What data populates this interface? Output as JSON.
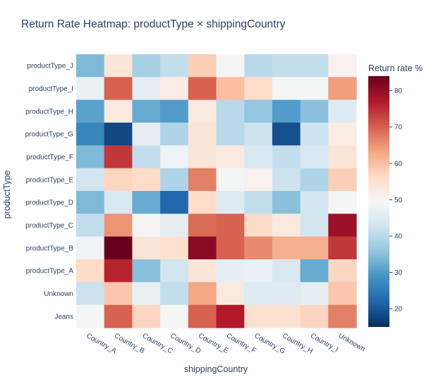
{
  "chart_data": {
    "type": "heatmap",
    "title": "Return Rate Heatmap: productType × shippingCountry",
    "xlabel": "shippingCountry",
    "ylabel": "productType",
    "colorbar_title": "Return rate %",
    "colorscale": "RdBu reversed",
    "zrange": [
      15,
      84
    ],
    "colorbar_ticks": [
      20,
      30,
      40,
      50,
      60,
      70,
      80
    ],
    "x": [
      "Country_A",
      "Country_B",
      "Country_C",
      "Country_D",
      "Country_E",
      "Country_F",
      "Country_G",
      "Country_H",
      "Country_I",
      "Unknown"
    ],
    "y": [
      "productType_J",
      "productType_I",
      "productType_H",
      "productType_G",
      "productType_F",
      "productType_E",
      "productType_D",
      "productType_C",
      "productType_B",
      "productType_A",
      "Unknown",
      "Jeans"
    ],
    "z": [
      [
        34,
        54,
        38,
        41,
        58,
        49,
        40,
        41,
        41,
        51
      ],
      [
        47,
        70,
        46,
        52,
        70,
        60,
        56,
        49,
        49,
        64
      ],
      [
        31,
        53,
        32,
        30,
        53,
        40,
        36,
        30,
        35,
        45
      ],
      [
        27,
        18,
        46,
        39,
        54,
        40,
        42,
        19,
        42,
        52
      ],
      [
        34,
        74,
        41,
        48,
        54,
        53,
        44,
        41,
        44,
        54
      ],
      [
        43,
        57,
        56,
        39,
        67,
        49,
        51,
        42,
        39,
        58
      ],
      [
        34,
        44,
        32,
        22,
        56,
        45,
        41,
        35,
        43,
        49
      ],
      [
        41,
        65,
        50,
        46,
        69,
        70,
        56,
        53,
        43,
        79
      ],
      [
        48,
        84,
        54,
        55,
        81,
        70,
        66,
        62,
        62,
        74
      ],
      [
        56,
        76,
        35,
        43,
        54,
        46,
        47,
        44,
        32,
        57
      ],
      [
        42,
        59,
        47,
        41,
        63,
        53,
        45,
        45,
        46,
        59
      ],
      [
        49,
        70,
        57,
        49,
        70,
        77,
        55,
        55,
        57,
        67
      ]
    ]
  }
}
